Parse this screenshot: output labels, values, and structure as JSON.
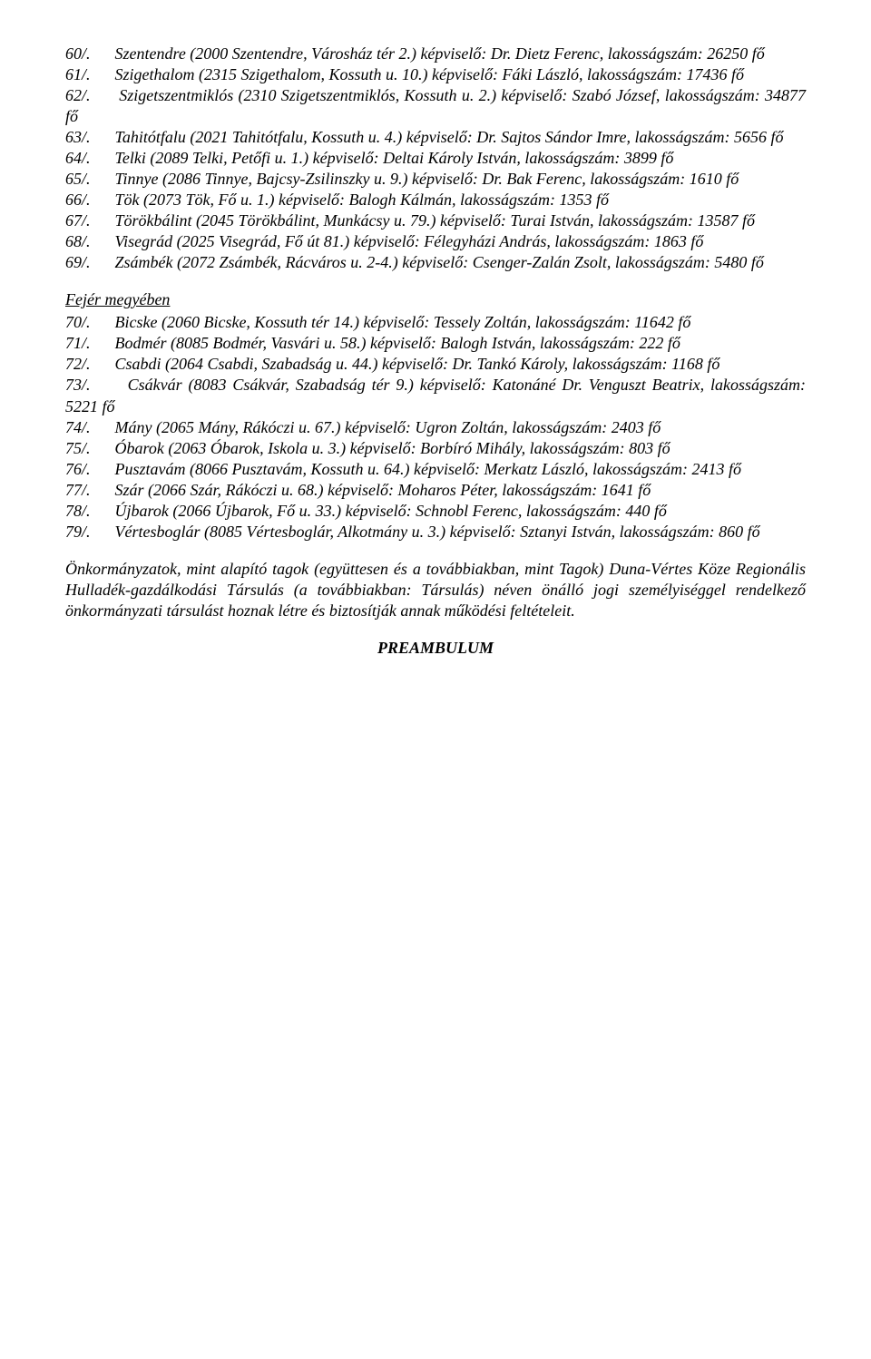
{
  "entries_part1": [
    {
      "num": "60/.",
      "text": "Szentendre (2000 Szentendre, Városház tér 2.) képviselő: Dr. Dietz Ferenc, lakosságszám: 26250 fő"
    },
    {
      "num": "61/.",
      "text": "Szigethalom (2315 Szigethalom, Kossuth u. 10.) képviselő: Fáki László, lakosságszám: 17436 fő"
    },
    {
      "num": "62/.",
      "text": "Szigetszentmiklós (2310 Szigetszentmiklós, Kossuth u. 2.) képviselő: Szabó József, lakosságszám: 34877 fő"
    },
    {
      "num": "63/.",
      "text": "Tahitótfalu (2021 Tahitótfalu, Kossuth u. 4.) képviselő: Dr. Sajtos Sándor Imre, lakosságszám: 5656 fő"
    },
    {
      "num": "64/.",
      "text": "Telki (2089 Telki, Petőfi u. 1.) képviselő: Deltai Károly István, lakosságszám: 3899 fő"
    },
    {
      "num": "65/.",
      "text": "Tinnye (2086 Tinnye, Bajcsy-Zsilinszky u. 9.) képviselő: Dr. Bak Ferenc, lakosságszám: 1610 fő"
    },
    {
      "num": "66/.",
      "text": "Tök (2073 Tök, Fő u. 1.) képviselő: Balogh Kálmán, lakosságszám: 1353 fő"
    },
    {
      "num": "67/.",
      "text": "Törökbálint (2045 Törökbálint, Munkácsy u. 79.) képviselő: Turai István, lakosságszám: 13587 fő"
    },
    {
      "num": "68/.",
      "text": "Visegrád (2025 Visegrád, Fő út 81.) képviselő: Félegyházi András, lakosságszám: 1863 fő"
    },
    {
      "num": "69/.",
      "text": "Zsámbék (2072 Zsámbék, Rácváros u. 2-4.) képviselő: Csenger-Zalán Zsolt, lakosságszám: 5480 fő"
    }
  ],
  "section_heading": "Fejér megyében",
  "entries_part2": [
    {
      "num": "70/.",
      "text": "Bicske (2060 Bicske, Kossuth tér 14.) képviselő: Tessely Zoltán, lakosságszám: 11642 fő"
    },
    {
      "num": "71/.",
      "text": "Bodmér (8085 Bodmér, Vasvári u. 58.) képviselő: Balogh István, lakosságszám: 222 fő"
    },
    {
      "num": "72/.",
      "text": "Csabdi (2064 Csabdi, Szabadság u. 44.) képviselő: Dr. Tankó Károly, lakosságszám: 1168 fő"
    },
    {
      "num": "73/.",
      "text": "Csákvár (8083 Csákvár, Szabadság tér 9.) képviselő: Katonáné Dr. Venguszt Beatrix, lakosságszám: 5221 fő"
    },
    {
      "num": "74/.",
      "text": "Mány (2065 Mány, Rákóczi u. 67.) képviselő: Ugron Zoltán, lakosságszám: 2403 fő"
    },
    {
      "num": "75/.",
      "text": "Óbarok (2063 Óbarok, Iskola u. 3.) képviselő: Borbíró Mihály, lakosságszám: 803 fő"
    },
    {
      "num": "76/.",
      "text": "Pusztavám (8066 Pusztavám, Kossuth u. 64.) képviselő: Merkatz László, lakosságszám: 2413 fő"
    },
    {
      "num": "77/.",
      "text": "Szár (2066 Szár, Rákóczi u. 68.) képviselő: Moharos Péter, lakosságszám: 1641 fő"
    },
    {
      "num": "78/.",
      "text": "Újbarok (2066 Újbarok, Fő u. 33.) képviselő: Schnobl Ferenc, lakosságszám: 440 fő"
    },
    {
      "num": "79/.",
      "text": "Vértesboglár (8085 Vértesboglár, Alkotmány u. 3.) képviselő: Sztanyi István, lakosságszám: 860 fő"
    }
  ],
  "closing_paragraph": "Önkormányzatok, mint alapító tagok (együttesen és a továbbiakban, mint Tagok) Duna-Vértes Köze Regionális Hulladék-gazdálkodási Társulás (a továbbiakban: Társulás) néven önálló jogi személyiséggel rendelkező önkormányzati társulást hoznak létre és biztosítják annak működési feltételeit.",
  "preambulum": "PREAMBULUM"
}
